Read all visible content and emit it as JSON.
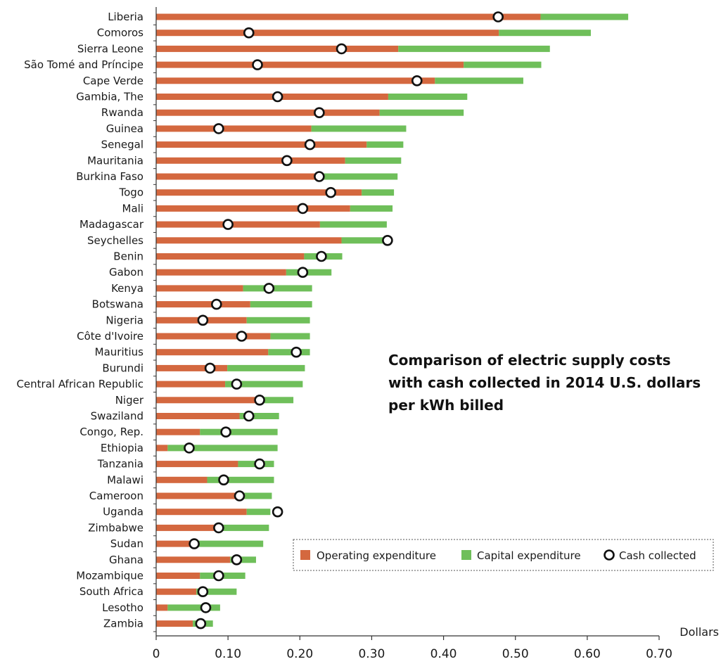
{
  "chart_data": {
    "type": "bar",
    "orientation": "horizontal",
    "stacked": true,
    "title": "Comparison of electric supply costs with cash collected in 2014 U.S. dollars per kWh billed",
    "title_lines": [
      "Comparison of electric supply costs",
      "with cash collected in 2014 U.S. dollars",
      "per kWh billed"
    ],
    "xlabel": "Dollars",
    "ylabel": "",
    "xlim": [
      0,
      0.7
    ],
    "xticks": [
      0,
      0.1,
      0.2,
      0.3,
      0.4,
      0.5,
      0.6,
      0.7
    ],
    "xtick_labels": [
      "0",
      "0.10",
      "0.20",
      "0.30",
      "0.40",
      "0.50",
      "0.60",
      "0.70"
    ],
    "grid": false,
    "legend_position": "bottom-right",
    "colors": {
      "operating": "#d4683f",
      "capital": "#6fbf5a",
      "cash_marker_fill": "#ffffff",
      "cash_marker_stroke": "#111111"
    },
    "categories": [
      "Liberia",
      "Comoros",
      "Sierra Leone",
      "São Tomé and Príncipe",
      "Cape Verde",
      "Gambia, The",
      "Rwanda",
      "Guinea",
      "Senegal",
      "Mauritania",
      "Burkina Faso",
      "Togo",
      "Mali",
      "Madagascar",
      "Seychelles",
      "Benin",
      "Gabon",
      "Kenya",
      "Botswana",
      "Nigeria",
      "Côte d'Ivoire",
      "Mauritius",
      "Burundi",
      "Central African Republic",
      "Niger",
      "Swaziland",
      "Congo, Rep.",
      "Ethiopia",
      "Tanzania",
      "Malawi",
      "Cameroon",
      "Uganda",
      "Zimbabwe",
      "Sudan",
      "Ghana",
      "Mozambique",
      "South Africa",
      "Lesotho",
      "Zambia"
    ],
    "series": [
      {
        "name": "Operating expenditure",
        "values": [
          0.535,
          0.477,
          0.337,
          0.428,
          0.388,
          0.323,
          0.311,
          0.216,
          0.293,
          0.263,
          0.229,
          0.286,
          0.27,
          0.228,
          0.258,
          0.206,
          0.181,
          0.121,
          0.131,
          0.126,
          0.159,
          0.156,
          0.099,
          0.096,
          0.146,
          0.116,
          0.061,
          0.016,
          0.114,
          0.071,
          0.121,
          0.126,
          0.088,
          0.051,
          0.103,
          0.061,
          0.056,
          0.016,
          0.051
        ]
      },
      {
        "name": "Capital expenditure",
        "values": [
          0.122,
          0.128,
          0.211,
          0.108,
          0.123,
          0.11,
          0.117,
          0.132,
          0.051,
          0.078,
          0.107,
          0.045,
          0.059,
          0.093,
          0.064,
          0.053,
          0.063,
          0.096,
          0.086,
          0.088,
          0.055,
          0.058,
          0.108,
          0.108,
          0.045,
          0.055,
          0.108,
          0.153,
          0.05,
          0.093,
          0.04,
          0.033,
          0.069,
          0.098,
          0.036,
          0.063,
          0.056,
          0.073,
          0.028
        ]
      },
      {
        "name": "Cash collected",
        "type": "scatter",
        "values": [
          0.476,
          0.129,
          0.258,
          0.141,
          0.363,
          0.169,
          0.227,
          0.087,
          0.214,
          0.182,
          0.227,
          0.243,
          0.204,
          0.1,
          0.322,
          0.23,
          0.204,
          0.157,
          0.084,
          0.065,
          0.119,
          0.195,
          0.075,
          0.112,
          0.144,
          0.129,
          0.097,
          0.046,
          0.144,
          0.094,
          0.116,
          0.169,
          0.087,
          0.053,
          0.112,
          0.087,
          0.065,
          0.069,
          0.062
        ]
      }
    ]
  }
}
